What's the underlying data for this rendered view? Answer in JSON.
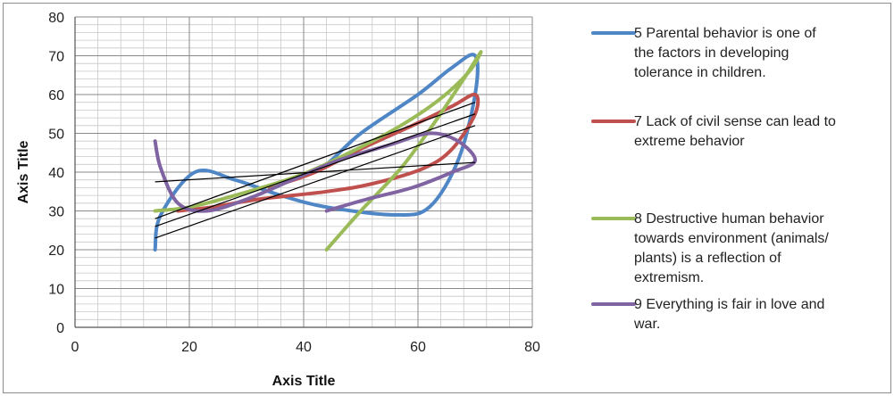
{
  "chart_data": {
    "type": "scatter",
    "subtype": "smooth-lines",
    "title": "",
    "xlabel": "Axis Title",
    "ylabel": "Axis Title",
    "xlim": [
      0,
      80
    ],
    "ylim": [
      0,
      80
    ],
    "xticks": [
      "0",
      "20",
      "40",
      "60",
      "80"
    ],
    "yticks": [
      "0",
      "10",
      "20",
      "30",
      "40",
      "50",
      "60",
      "70",
      "80"
    ],
    "grid": {
      "major": true,
      "minor": true
    },
    "legend_position": "right",
    "series": [
      {
        "name": "5 Parental behavior is one of the factors in developing tolerance in children.",
        "color": "#4f86c6",
        "points": [
          [
            14,
            20
          ],
          [
            15,
            29
          ],
          [
            21,
            40
          ],
          [
            28,
            38
          ],
          [
            36,
            34
          ],
          [
            44,
            31
          ],
          [
            56,
            29
          ],
          [
            62,
            31
          ],
          [
            67,
            43
          ],
          [
            70,
            60
          ],
          [
            70,
            70
          ],
          [
            66,
            67
          ],
          [
            60,
            60
          ],
          [
            50,
            50
          ],
          [
            44,
            42
          ],
          [
            40,
            39
          ]
        ]
      },
      {
        "name": "7 Lack of civil sense can lead to extreme behavior",
        "color": "#c0504d",
        "points": [
          [
            18,
            30
          ],
          [
            24,
            31
          ],
          [
            32,
            33
          ],
          [
            44,
            35
          ],
          [
            52,
            37
          ],
          [
            61,
            41
          ],
          [
            66,
            46
          ],
          [
            70,
            55
          ],
          [
            70,
            60
          ],
          [
            66,
            57
          ],
          [
            59,
            52
          ],
          [
            50,
            46
          ],
          [
            42,
            40
          ],
          [
            34,
            36
          ]
        ]
      },
      {
        "name": "8 Destructive human behavior towards environment (animals/ plants) is a reflection of extremism.",
        "color": "#9bbb59",
        "points": [
          [
            44,
            20
          ],
          [
            50,
            30
          ],
          [
            57,
            41
          ],
          [
            63,
            53
          ],
          [
            68,
            64
          ],
          [
            71,
            71
          ],
          [
            69,
            66
          ],
          [
            64,
            59
          ],
          [
            57,
            52
          ],
          [
            48,
            45
          ],
          [
            39,
            39
          ],
          [
            28,
            34
          ],
          [
            20,
            31
          ],
          [
            14,
            30
          ]
        ]
      },
      {
        "name": "9 Everything is fair in love and war.",
        "color": "#8064a2",
        "points": [
          [
            14,
            48
          ],
          [
            15,
            41
          ],
          [
            18,
            32
          ],
          [
            23,
            30
          ],
          [
            30,
            33
          ],
          [
            38,
            38
          ],
          [
            46,
            43
          ],
          [
            55,
            47
          ],
          [
            62,
            50
          ],
          [
            67,
            48
          ],
          [
            70,
            43
          ],
          [
            66,
            40
          ],
          [
            59,
            36
          ],
          [
            51,
            33
          ],
          [
            44,
            30
          ]
        ]
      }
    ],
    "trendlines": [
      {
        "color": "#000000",
        "from": [
          14,
          37.5
        ],
        "to": [
          70,
          42.5
        ]
      },
      {
        "color": "#000000",
        "from": [
          14,
          28
        ],
        "to": [
          70,
          58
        ]
      },
      {
        "color": "#000000",
        "from": [
          14,
          26
        ],
        "to": [
          70,
          55
        ]
      },
      {
        "color": "#000000",
        "from": [
          14,
          23
        ],
        "to": [
          70,
          52
        ]
      }
    ]
  }
}
